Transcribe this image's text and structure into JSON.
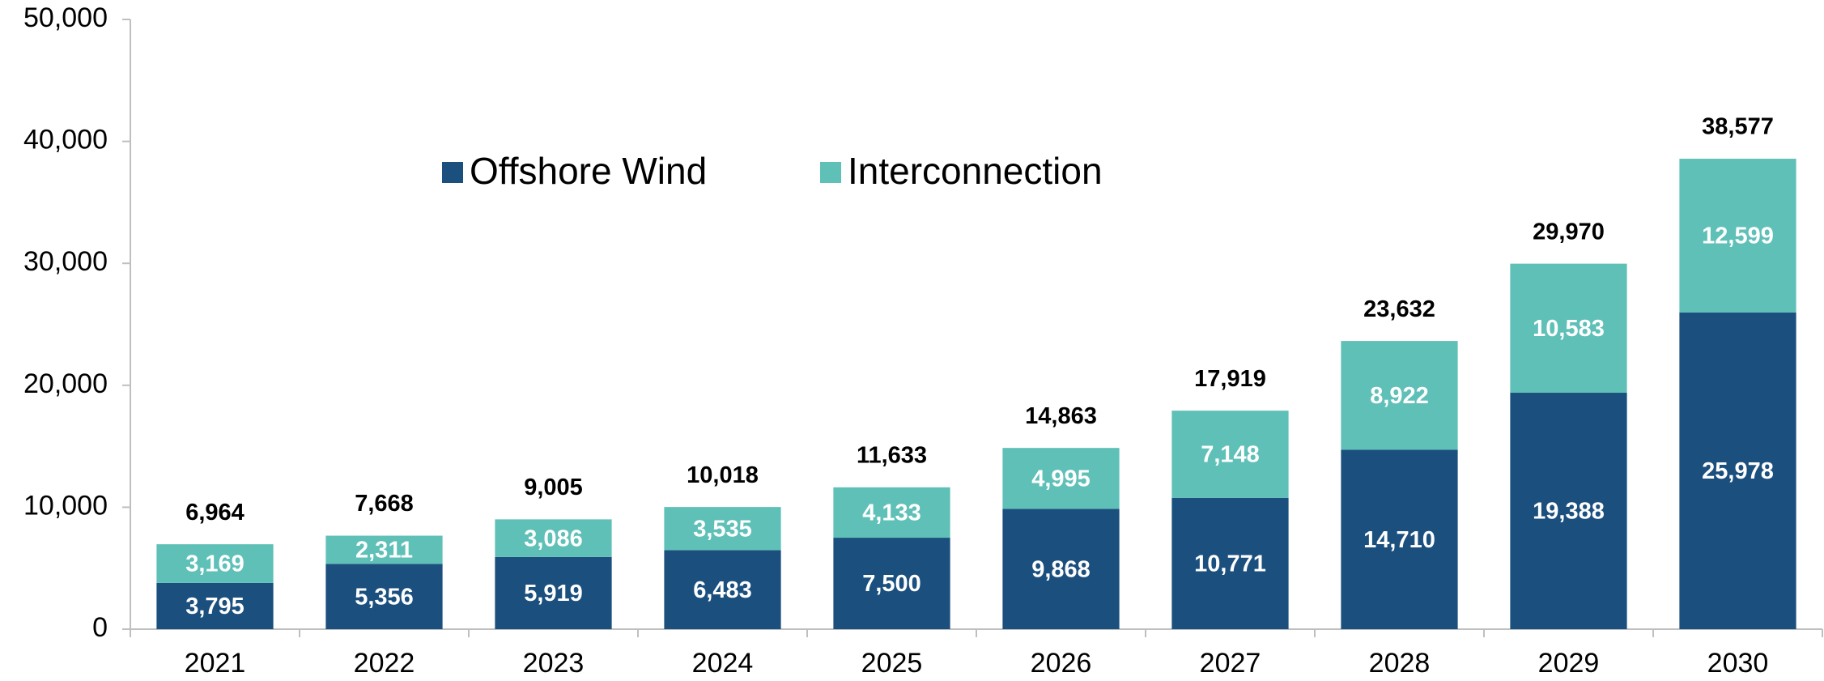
{
  "chart_data": {
    "type": "stacked_bar",
    "categories": [
      "2021",
      "2022",
      "2023",
      "2024",
      "2025",
      "2026",
      "2027",
      "2028",
      "2029",
      "2030"
    ],
    "series": [
      {
        "name": "Offshore Wind",
        "color": "#1b4f7e",
        "values": [
          3795,
          5356,
          5919,
          6483,
          7500,
          9868,
          10771,
          14710,
          19388,
          25978
        ],
        "value_labels": [
          "3,795",
          "5,356",
          "5,919",
          "6,483",
          "7,500",
          "9,868",
          "10,771",
          "14,710",
          "19,388",
          "25,978"
        ]
      },
      {
        "name": "Interconnection",
        "color": "#5fc0b8",
        "values": [
          3169,
          2311,
          3086,
          3535,
          4133,
          4995,
          7148,
          8922,
          10583,
          12599
        ],
        "value_labels": [
          "3,169",
          "2,311",
          "3,086",
          "3,535",
          "4,133",
          "4,995",
          "7,148",
          "8,922",
          "10,583",
          "12,599"
        ]
      }
    ],
    "totals": [
      6964,
      7668,
      9005,
      10018,
      11633,
      14863,
      17919,
      23632,
      29970,
      38577
    ],
    "total_labels": [
      "6,964",
      "7,668",
      "9,005",
      "10,018",
      "11,633",
      "14,863",
      "17,919",
      "23,632",
      "29,970",
      "38,577"
    ],
    "ylim": [
      0,
      50000
    ],
    "yticks": [
      0,
      {
        "value": 10000,
        "label": "10,000"
      },
      {
        "value": 20000,
        "label": "20,000"
      },
      {
        "value": 30000,
        "label": "30,000"
      },
      {
        "value": 40000,
        "label": "40,000"
      },
      {
        "value": 50000,
        "label": "50,000"
      }
    ],
    "grid": false,
    "legend": "top"
  }
}
